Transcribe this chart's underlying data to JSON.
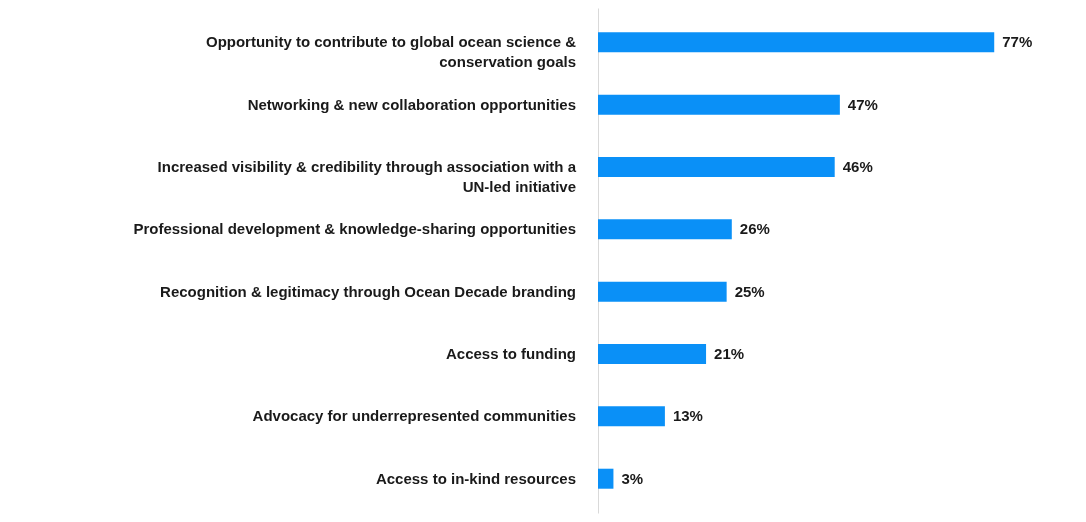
{
  "chart_data": {
    "type": "bar",
    "orientation": "horizontal",
    "categories": [
      "Opportunity to contribute to global ocean science & conservation goals",
      "Networking & new collaboration opportunities",
      "Increased visibility & credibility through association with a UN-led initiative",
      "Professional development & knowledge-sharing opportunities",
      "Recognition & legitimacy through Ocean Decade branding",
      "Access to funding",
      "Advocacy for underrepresented communities",
      "Access to in-kind resources"
    ],
    "values": [
      77,
      47,
      46,
      26,
      25,
      21,
      13,
      3
    ],
    "value_labels": [
      "77%",
      "47%",
      "46%",
      "26%",
      "25%",
      "21%",
      "13%",
      "3%"
    ],
    "color": "#0a90f7",
    "grid": false
  }
}
